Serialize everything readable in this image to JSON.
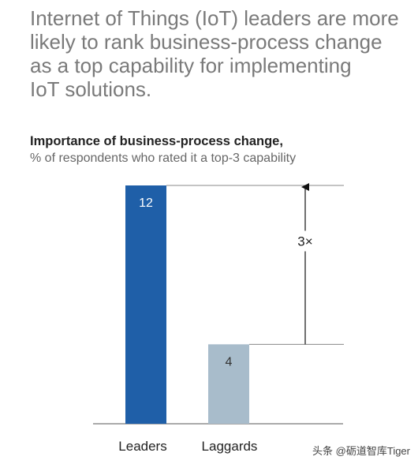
{
  "headline": {
    "lines": [
      "Internet of Things (IoT) leaders are more",
      "likely to rank business-process change",
      "as a top capability for implementing",
      "IoT solutions."
    ]
  },
  "chart_data": {
    "type": "bar",
    "title": "Importance of business-process change,",
    "subtitle": "% of respondents who rated it a top-3 capability",
    "categories": [
      "Leaders",
      "Laggards"
    ],
    "values": [
      12,
      4
    ],
    "ylim": [
      0,
      12
    ],
    "grid": false,
    "annotation": "3×",
    "colors": [
      "#1f5fa8",
      "#a8bccb"
    ]
  },
  "watermark": "头条 @砺道智库Tiger"
}
